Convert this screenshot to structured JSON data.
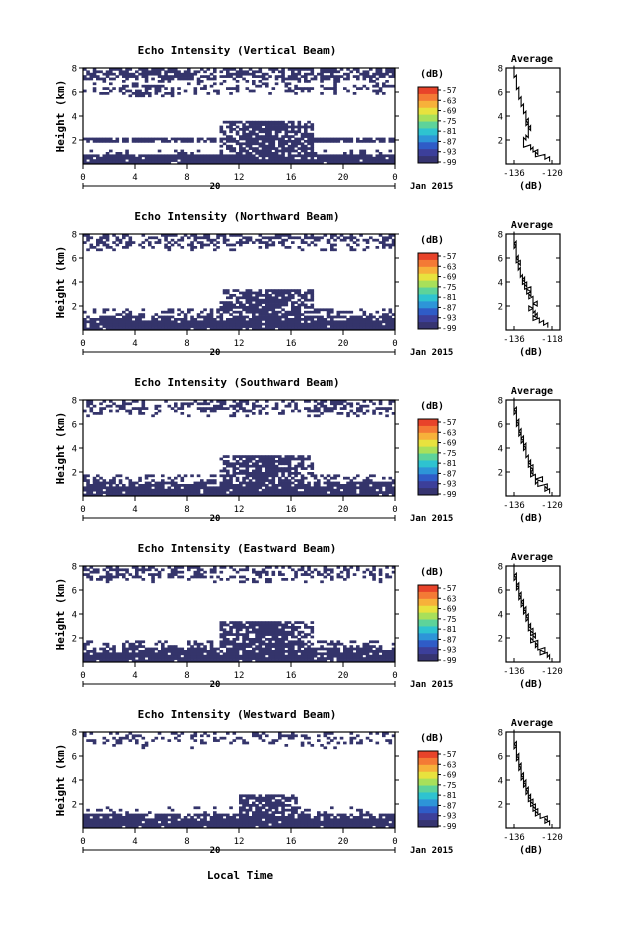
{
  "figure": {
    "date_label": "Jan 2015",
    "xlabel": "Local Time",
    "colorbar_unit": "(dB)",
    "colorbar_ticks": [
      "-57",
      "-63",
      "-69",
      "-75",
      "-81",
      "-87",
      "-93",
      "-99"
    ],
    "colorbar_colors": [
      "#e8432a",
      "#f47a35",
      "#f7b13a",
      "#e8e23e",
      "#a8e05a",
      "#5dd39a",
      "#2ec3d0",
      "#2d95d8",
      "#2f5cc7",
      "#3c3f9a",
      "#363470"
    ],
    "echo_color": "#34346b",
    "profile_title": "Average",
    "profile_xlabel": "(dB)"
  },
  "chart_data": [
    {
      "type": "heatmap",
      "title": "Echo Intensity (Vertical Beam)",
      "ylabel": "Height (km)",
      "x_ticks": [
        "0",
        "4",
        "8",
        "12",
        "16",
        "20",
        "0"
      ],
      "x_center_label": "20",
      "y_ticks": [
        "2",
        "4",
        "6",
        "8"
      ],
      "xlim": [
        0,
        24
      ],
      "ylim": [
        0,
        8
      ],
      "profile": {
        "title": "Average",
        "xlim": [
          -136,
          -120
        ],
        "x_ticks": [
          "-136",
          "-120"
        ],
        "y_ticks": [
          "2",
          "4",
          "6",
          "8"
        ],
        "height_km": [
          0.4,
          0.6,
          0.8,
          1.0,
          1.2,
          1.4,
          1.6,
          1.8,
          2.0,
          2.2,
          2.4,
          2.6,
          2.8,
          3.0,
          3.2,
          3.4,
          3.6,
          3.8,
          4.0,
          4.2,
          4.4,
          4.6,
          4.8,
          5.0,
          5.2,
          5.4,
          5.6,
          5.8,
          6.0,
          6.2,
          6.4,
          6.6,
          6.8,
          7.0,
          7.2,
          7.4,
          7.6,
          7.8,
          8.0
        ],
        "value_db": [
          -121,
          -123,
          -127,
          -126,
          -128,
          -129,
          -132,
          -132,
          -132,
          -131,
          -130,
          -130,
          -130,
          -129,
          -130,
          -131,
          -130,
          -131,
          -131,
          -131,
          -132,
          -132,
          -132,
          -133,
          -133,
          -133,
          -134,
          -134,
          -134,
          -134,
          -135,
          -135,
          -135,
          -135,
          -135,
          -136,
          -136,
          -136,
          -136
        ]
      }
    },
    {
      "type": "heatmap",
      "title": "Echo Intensity (Northward Beam)",
      "ylabel": "Height (km)",
      "x_ticks": [
        "0",
        "4",
        "8",
        "12",
        "16",
        "20",
        "0"
      ],
      "x_center_label": "20",
      "y_ticks": [
        "2",
        "4",
        "6",
        "8"
      ],
      "xlim": [
        0,
        24
      ],
      "ylim": [
        0,
        8
      ],
      "profile": {
        "title": "Average",
        "xlim": [
          -136,
          -118
        ],
        "x_ticks": [
          "-136",
          "-118"
        ],
        "y_ticks": [
          "2",
          "4",
          "6",
          "8"
        ],
        "height_km": [
          0.4,
          0.6,
          0.8,
          1.0,
          1.2,
          1.4,
          1.6,
          1.8,
          2.0,
          2.2,
          2.4,
          2.6,
          2.8,
          3.0,
          3.2,
          3.4,
          3.6,
          3.8,
          4.0,
          4.2,
          4.4,
          4.6,
          4.8,
          5.0,
          5.2,
          5.4,
          5.6,
          5.8,
          6.0,
          6.2,
          6.4,
          6.6,
          6.8,
          7.0,
          7.2,
          7.4,
          7.6,
          7.8,
          8.0
        ],
        "value_db": [
          -120,
          -122,
          -124,
          -127,
          -125,
          -126,
          -127,
          -129,
          -127,
          -125,
          -127,
          -127,
          -129,
          -128,
          -130,
          -128,
          -131,
          -130,
          -132,
          -131,
          -132,
          -133,
          -133,
          -133,
          -134,
          -134,
          -133,
          -135,
          -134,
          -135,
          -135,
          -135,
          -135,
          -136,
          -135,
          -136,
          -136,
          -136,
          -136
        ]
      }
    },
    {
      "type": "heatmap",
      "title": "Echo Intensity (Southward Beam)",
      "ylabel": "Height (km)",
      "x_ticks": [
        "0",
        "4",
        "8",
        "12",
        "16",
        "20",
        "0"
      ],
      "x_center_label": "20",
      "y_ticks": [
        "2",
        "4",
        "6",
        "8"
      ],
      "xlim": [
        0,
        24
      ],
      "ylim": [
        0,
        8
      ],
      "profile": {
        "title": "Average",
        "xlim": [
          -136,
          -120
        ],
        "x_ticks": [
          "-136",
          "-120"
        ],
        "y_ticks": [
          "2",
          "4",
          "6",
          "8"
        ],
        "height_km": [
          0.4,
          0.6,
          0.8,
          1.0,
          1.2,
          1.4,
          1.6,
          1.8,
          2.0,
          2.2,
          2.4,
          2.6,
          2.8,
          3.0,
          3.2,
          3.4,
          3.6,
          3.8,
          4.0,
          4.2,
          4.4,
          4.6,
          4.8,
          5.0,
          5.2,
          5.4,
          5.6,
          5.8,
          6.0,
          6.2,
          6.4,
          6.6,
          6.8,
          7.0,
          7.2,
          7.4,
          7.6,
          7.8,
          8.0
        ],
        "value_db": [
          -121,
          -123,
          -122,
          -126,
          -127,
          -124,
          -127,
          -129,
          -128,
          -129,
          -128,
          -130,
          -129,
          -130,
          -130,
          -131,
          -131,
          -131,
          -132,
          -131,
          -132,
          -133,
          -132,
          -133,
          -134,
          -133,
          -134,
          -134,
          -135,
          -134,
          -135,
          -135,
          -135,
          -136,
          -135,
          -136,
          -136,
          -136,
          -136
        ]
      }
    },
    {
      "type": "heatmap",
      "title": "Echo Intensity (Eastward Beam)",
      "ylabel": "Height (km)",
      "x_ticks": [
        "0",
        "4",
        "8",
        "12",
        "16",
        "20",
        "0"
      ],
      "x_center_label": "20",
      "y_ticks": [
        "2",
        "4",
        "6",
        "8"
      ],
      "xlim": [
        0,
        24
      ],
      "ylim": [
        0,
        8
      ],
      "profile": {
        "title": "Average",
        "xlim": [
          -136,
          -120
        ],
        "x_ticks": [
          "-136",
          "-120"
        ],
        "y_ticks": [
          "2",
          "4",
          "6",
          "8"
        ],
        "height_km": [
          0.4,
          0.6,
          0.8,
          1.0,
          1.2,
          1.4,
          1.6,
          1.8,
          2.0,
          2.2,
          2.4,
          2.6,
          2.8,
          3.0,
          3.2,
          3.4,
          3.6,
          3.8,
          4.0,
          4.2,
          4.4,
          4.6,
          4.8,
          5.0,
          5.2,
          5.4,
          5.6,
          5.8,
          6.0,
          6.2,
          6.4,
          6.6,
          6.8,
          7.0,
          7.2,
          7.4,
          7.6,
          7.8,
          8.0
        ],
        "value_db": [
          -121,
          -122,
          -125,
          -123,
          -126,
          -127,
          -126,
          -129,
          -128,
          -127,
          -129,
          -128,
          -130,
          -129,
          -130,
          -130,
          -131,
          -130,
          -131,
          -132,
          -131,
          -132,
          -133,
          -132,
          -133,
          -134,
          -133,
          -134,
          -134,
          -135,
          -134,
          -135,
          -135,
          -136,
          -135,
          -136,
          -136,
          -136,
          -136
        ]
      }
    },
    {
      "type": "heatmap",
      "title": "Echo Intensity (Westward Beam)",
      "ylabel": "Height (km)",
      "x_ticks": [
        "0",
        "4",
        "8",
        "12",
        "16",
        "20",
        "0"
      ],
      "x_center_label": "20",
      "y_ticks": [
        "2",
        "4",
        "6",
        "8"
      ],
      "xlim": [
        0,
        24
      ],
      "ylim": [
        0,
        8
      ],
      "profile": {
        "title": "Average",
        "xlim": [
          -136,
          -120
        ],
        "x_ticks": [
          "-136",
          "-120"
        ],
        "y_ticks": [
          "2",
          "4",
          "6",
          "8"
        ],
        "height_km": [
          0.4,
          0.6,
          0.8,
          1.0,
          1.2,
          1.4,
          1.6,
          1.8,
          2.0,
          2.2,
          2.4,
          2.6,
          2.8,
          3.0,
          3.2,
          3.4,
          3.6,
          3.8,
          4.0,
          4.2,
          4.4,
          4.6,
          4.8,
          5.0,
          5.2,
          5.4,
          5.6,
          5.8,
          6.0,
          6.2,
          6.4,
          6.6,
          6.8,
          7.0,
          7.2,
          7.4,
          7.6,
          7.8,
          8.0
        ],
        "value_db": [
          -121,
          -123,
          -122,
          -125,
          -127,
          -126,
          -128,
          -127,
          -129,
          -128,
          -130,
          -129,
          -130,
          -131,
          -130,
          -131,
          -132,
          -131,
          -132,
          -133,
          -132,
          -133,
          -133,
          -134,
          -133,
          -134,
          -134,
          -135,
          -134,
          -135,
          -135,
          -135,
          -136,
          -135,
          -136,
          -136,
          -136,
          -136,
          -136
        ]
      }
    }
  ]
}
